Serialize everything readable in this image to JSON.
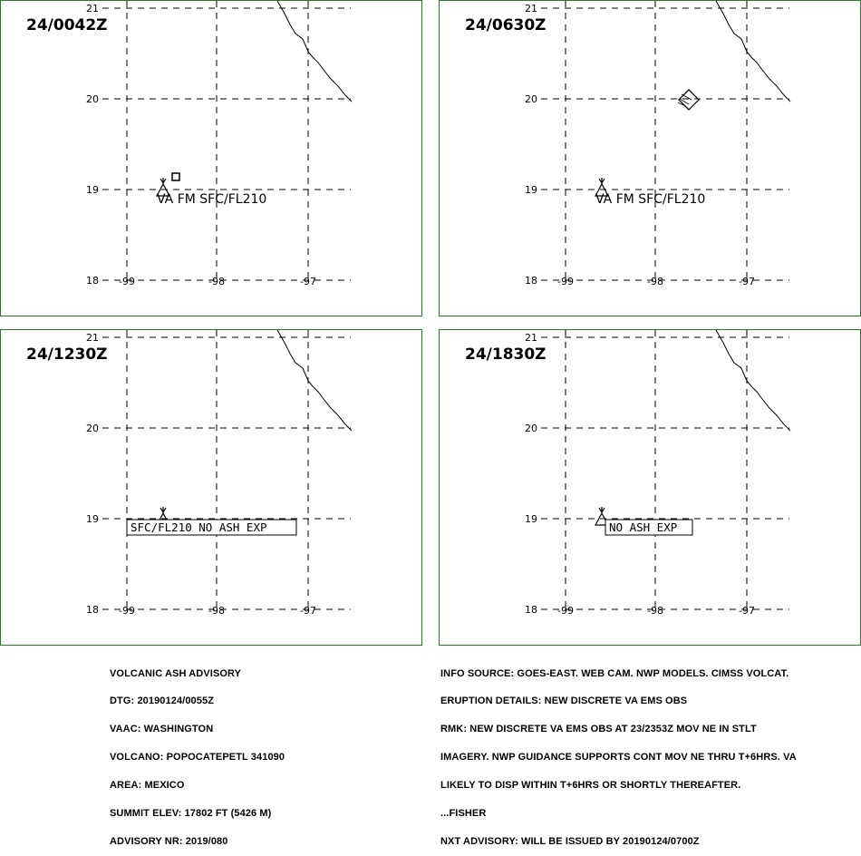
{
  "panels": [
    {
      "time": "24/0042Z",
      "annotation": {
        "text": "VA FM SFC/FL210",
        "boxed": false
      },
      "ash_marker": "small-square",
      "lat_labels": [
        "21",
        "20",
        "19",
        "18"
      ],
      "lon_labels": [
        "-99",
        "-98",
        "-97"
      ]
    },
    {
      "time": "24/0630Z",
      "annotation": {
        "text": "VA FM SFC/FL210",
        "boxed": false
      },
      "ash_marker": "diamond",
      "lat_labels": [
        "21",
        "20",
        "19",
        "18"
      ],
      "lon_labels": [
        "-99",
        "-98",
        "-97"
      ]
    },
    {
      "time": "24/1230Z",
      "annotation": {
        "text": "SFC/FL210 NO ASH EXP",
        "boxed": true
      },
      "ash_marker": "none",
      "lat_labels": [
        "21",
        "20",
        "19",
        "18"
      ],
      "lon_labels": [
        "-99",
        "-98",
        "-97"
      ]
    },
    {
      "time": "24/1830Z",
      "annotation": {
        "text": "NO ASH EXP",
        "boxed": true
      },
      "ash_marker": "none",
      "lat_labels": [
        "21",
        "20",
        "19",
        "18"
      ],
      "lon_labels": [
        "-99",
        "-98",
        "-97"
      ]
    }
  ],
  "volcano_icon": "volcano-triangle-icon",
  "colors": {
    "panel_border": "#2a7a2a",
    "ink": "#000000",
    "background": "#ffffff"
  },
  "advisory_left": [
    "VOLCANIC ASH ADVISORY",
    "DTG: 20190124/0055Z",
    "VAAC: WASHINGTON",
    "VOLCANO: POPOCATEPETL 341090",
    "AREA: MEXICO",
    "SUMMIT ELEV: 17802 FT (5426 M)",
    "ADVISORY NR: 2019/080"
  ],
  "advisory_right": [
    "INFO SOURCE: GOES-EAST. WEB CAM. NWP MODELS. CIMSS VOLCAT.",
    "ERUPTION DETAILS: NEW DISCRETE VA EMS OBS",
    "RMK: NEW DISCRETE VA EMS OBS AT 23/2353Z MOV NE IN STLT",
    "IMAGERY. NWP GUIDANCE SUPPORTS CONT MOV NE THRU T+6HRS. VA",
    "LIKELY TO DISP WITHIN T+6HRS OR SHORTLY THEREAFTER.",
    "...FISHER",
    "NXT ADVISORY: WILL BE ISSUED BY 20190124/0700Z"
  ]
}
